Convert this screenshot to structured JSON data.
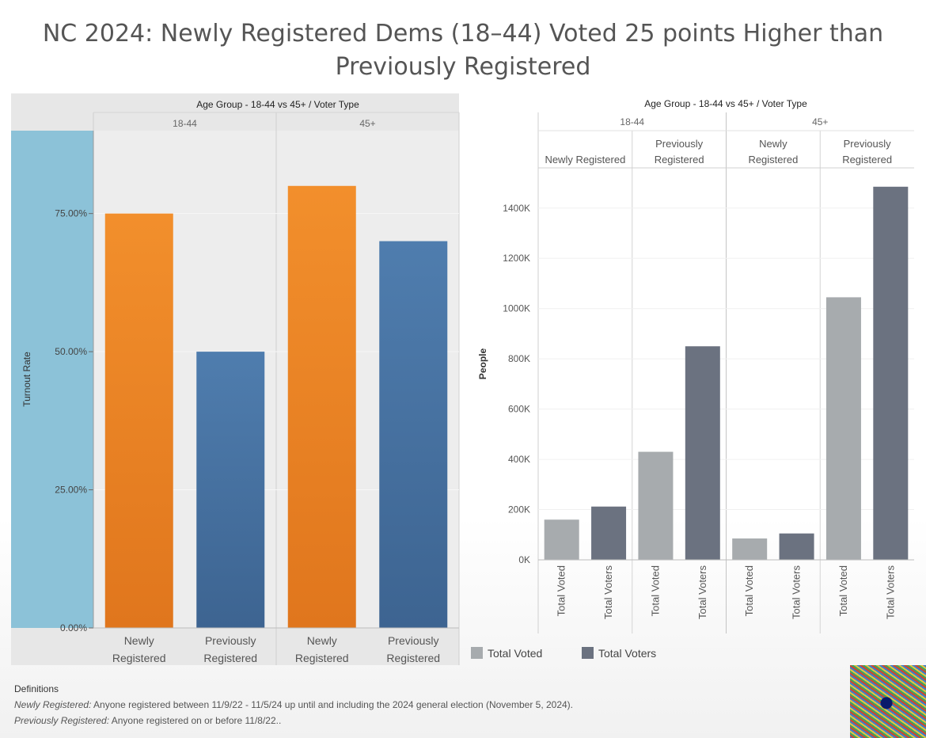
{
  "page": {
    "title": "NC 2024: Newly Registered Dems (18–44) Voted 25 points Higher than Previously Registered"
  },
  "colors": {
    "newly_registered": "#f08a24",
    "previously_registered": "#4a78aa",
    "total_voted": "#a7abae",
    "total_voters": "#6b7280",
    "left_axis_band": "#8cc2d8",
    "left_panel_bg": "#e7e7e7"
  },
  "chart_data": [
    {
      "type": "bar",
      "header": "Age Group - 18-44 vs 45+ / Voter Type",
      "groups": [
        "18-44",
        "45+"
      ],
      "categories": [
        "Newly Registered",
        "Previously Registered"
      ],
      "category_lines": [
        [
          "Newly",
          "Registered"
        ],
        [
          "Previously",
          "Registered"
        ]
      ],
      "ylabel": "Turnout Rate",
      "ylim": [
        0,
        0.9
      ],
      "yticks": [
        0,
        0.25,
        0.5,
        0.75
      ],
      "ytick_labels": [
        "0.00%",
        "25.00%",
        "50.00%",
        "75.00%"
      ],
      "values": [
        {
          "group": "18-44",
          "category": "Newly Registered",
          "value": 0.75
        },
        {
          "group": "18-44",
          "category": "Previously Registered",
          "value": 0.5
        },
        {
          "group": "45+",
          "category": "Newly Registered",
          "value": 0.8
        },
        {
          "group": "45+",
          "category": "Previously Registered",
          "value": 0.7
        }
      ]
    },
    {
      "type": "bar",
      "header": "Age Group - 18-44 vs 45+ / Voter Type",
      "groups": [
        "18-44",
        "45+"
      ],
      "subgroups": [
        "Newly Registered",
        "Previously Registered"
      ],
      "subgroup_headers": [
        [
          "Newly Registered"
        ],
        [
          "Previously",
          "Registered"
        ],
        [
          "Newly",
          "Registered"
        ],
        [
          "Previously",
          "Registered"
        ]
      ],
      "measures": [
        "Total Voted",
        "Total Voters"
      ],
      "ylabel": "People",
      "ylim": [
        0,
        1560000
      ],
      "yticks": [
        0,
        200000,
        400000,
        600000,
        800000,
        1000000,
        1200000,
        1400000
      ],
      "ytick_labels": [
        "0K",
        "200K",
        "400K",
        "600K",
        "800K",
        "1000K",
        "1200K",
        "1400K"
      ],
      "legend": [
        "Total Voted",
        "Total Voters"
      ],
      "legend_position": "bottom-left",
      "series": [
        {
          "name": "Total Voted",
          "values": [
            160000,
            430000,
            85000,
            1045000
          ]
        },
        {
          "name": "Total Voters",
          "values": [
            212000,
            850000,
            105000,
            1485000
          ]
        }
      ]
    }
  ],
  "definitions": {
    "heading": "Definitions",
    "items": [
      {
        "term": "Newly Registered:",
        "text": "Anyone registered between 11/9/22 - 11/5/24 up until and including the 2024 general election (November 5, 2024)."
      },
      {
        "term": "Previously Registered:",
        "text": "Anyone registered on or before 11/8/22.."
      }
    ]
  }
}
